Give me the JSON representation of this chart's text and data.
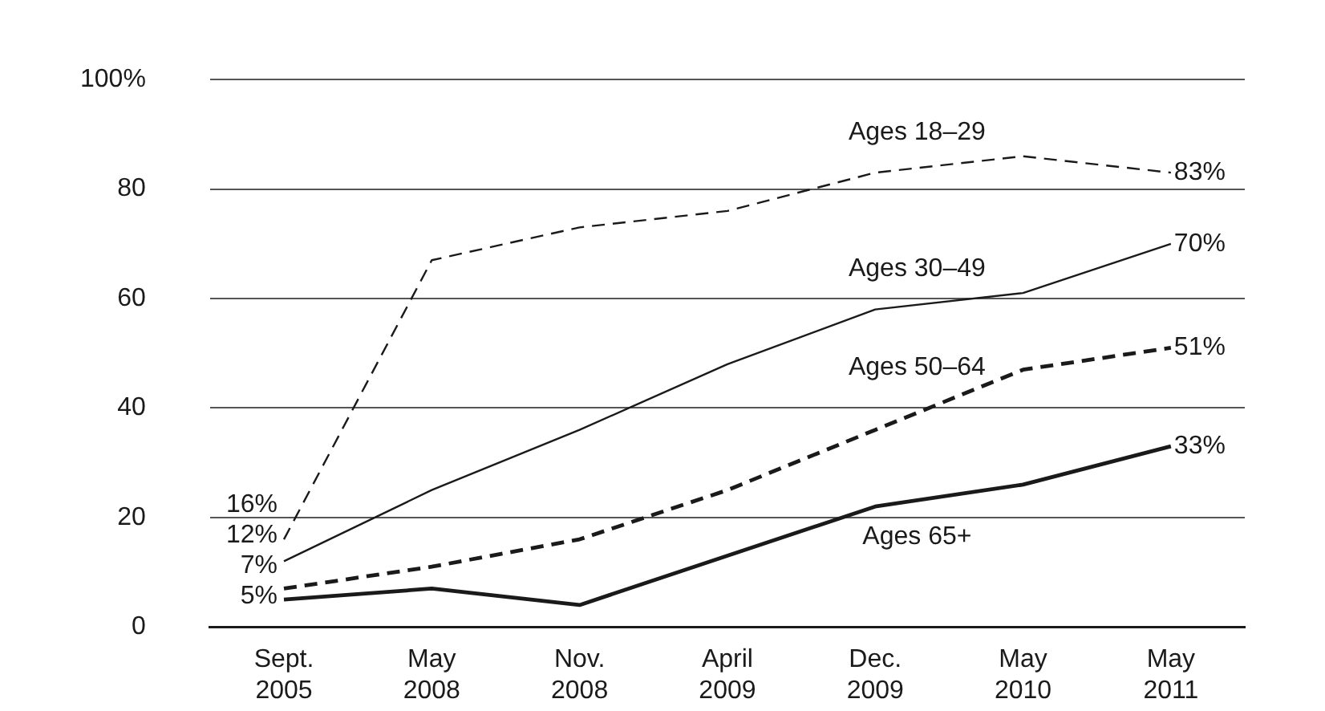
{
  "chart_data": {
    "type": "line",
    "categories": [
      "Sept. 2005",
      "May 2008",
      "Nov. 2008",
      "April 2009",
      "Dec. 2009",
      "May 2010",
      "May 2011"
    ],
    "series": [
      {
        "name": "Ages 18–29",
        "color": "#1a1a1a",
        "line_style": "dashed",
        "values": [
          16,
          67,
          73,
          76,
          83,
          86,
          83
        ],
        "value_labels": [
          "16%",
          null,
          null,
          null,
          null,
          null,
          "83%"
        ]
      },
      {
        "name": "Ages 30–49",
        "color": "#1a1a1a",
        "line_style": "solid",
        "values": [
          12,
          25,
          36,
          48,
          58,
          61,
          70
        ],
        "value_labels": [
          "12%",
          null,
          null,
          null,
          null,
          null,
          "70%"
        ]
      },
      {
        "name": "Ages 50–64",
        "color": "#1a1a1a",
        "line_style": "dashed",
        "values": [
          7,
          11,
          16,
          25,
          36,
          47,
          51
        ],
        "value_labels": [
          "7%",
          null,
          null,
          null,
          null,
          null,
          "51%"
        ]
      },
      {
        "name": "Ages 65+",
        "color": "#1a1a1a",
        "line_style": "solid",
        "values": [
          5,
          7,
          4,
          13,
          22,
          26,
          33
        ],
        "value_labels": [
          "5%",
          null,
          null,
          null,
          null,
          null,
          "33%"
        ]
      }
    ],
    "ylim": [
      0,
      100
    ],
    "yticks": [
      0,
      20,
      40,
      60,
      80,
      {
        "value": 100,
        "label": "100%"
      }
    ],
    "grid": "y",
    "legend": false,
    "marker": "none"
  }
}
